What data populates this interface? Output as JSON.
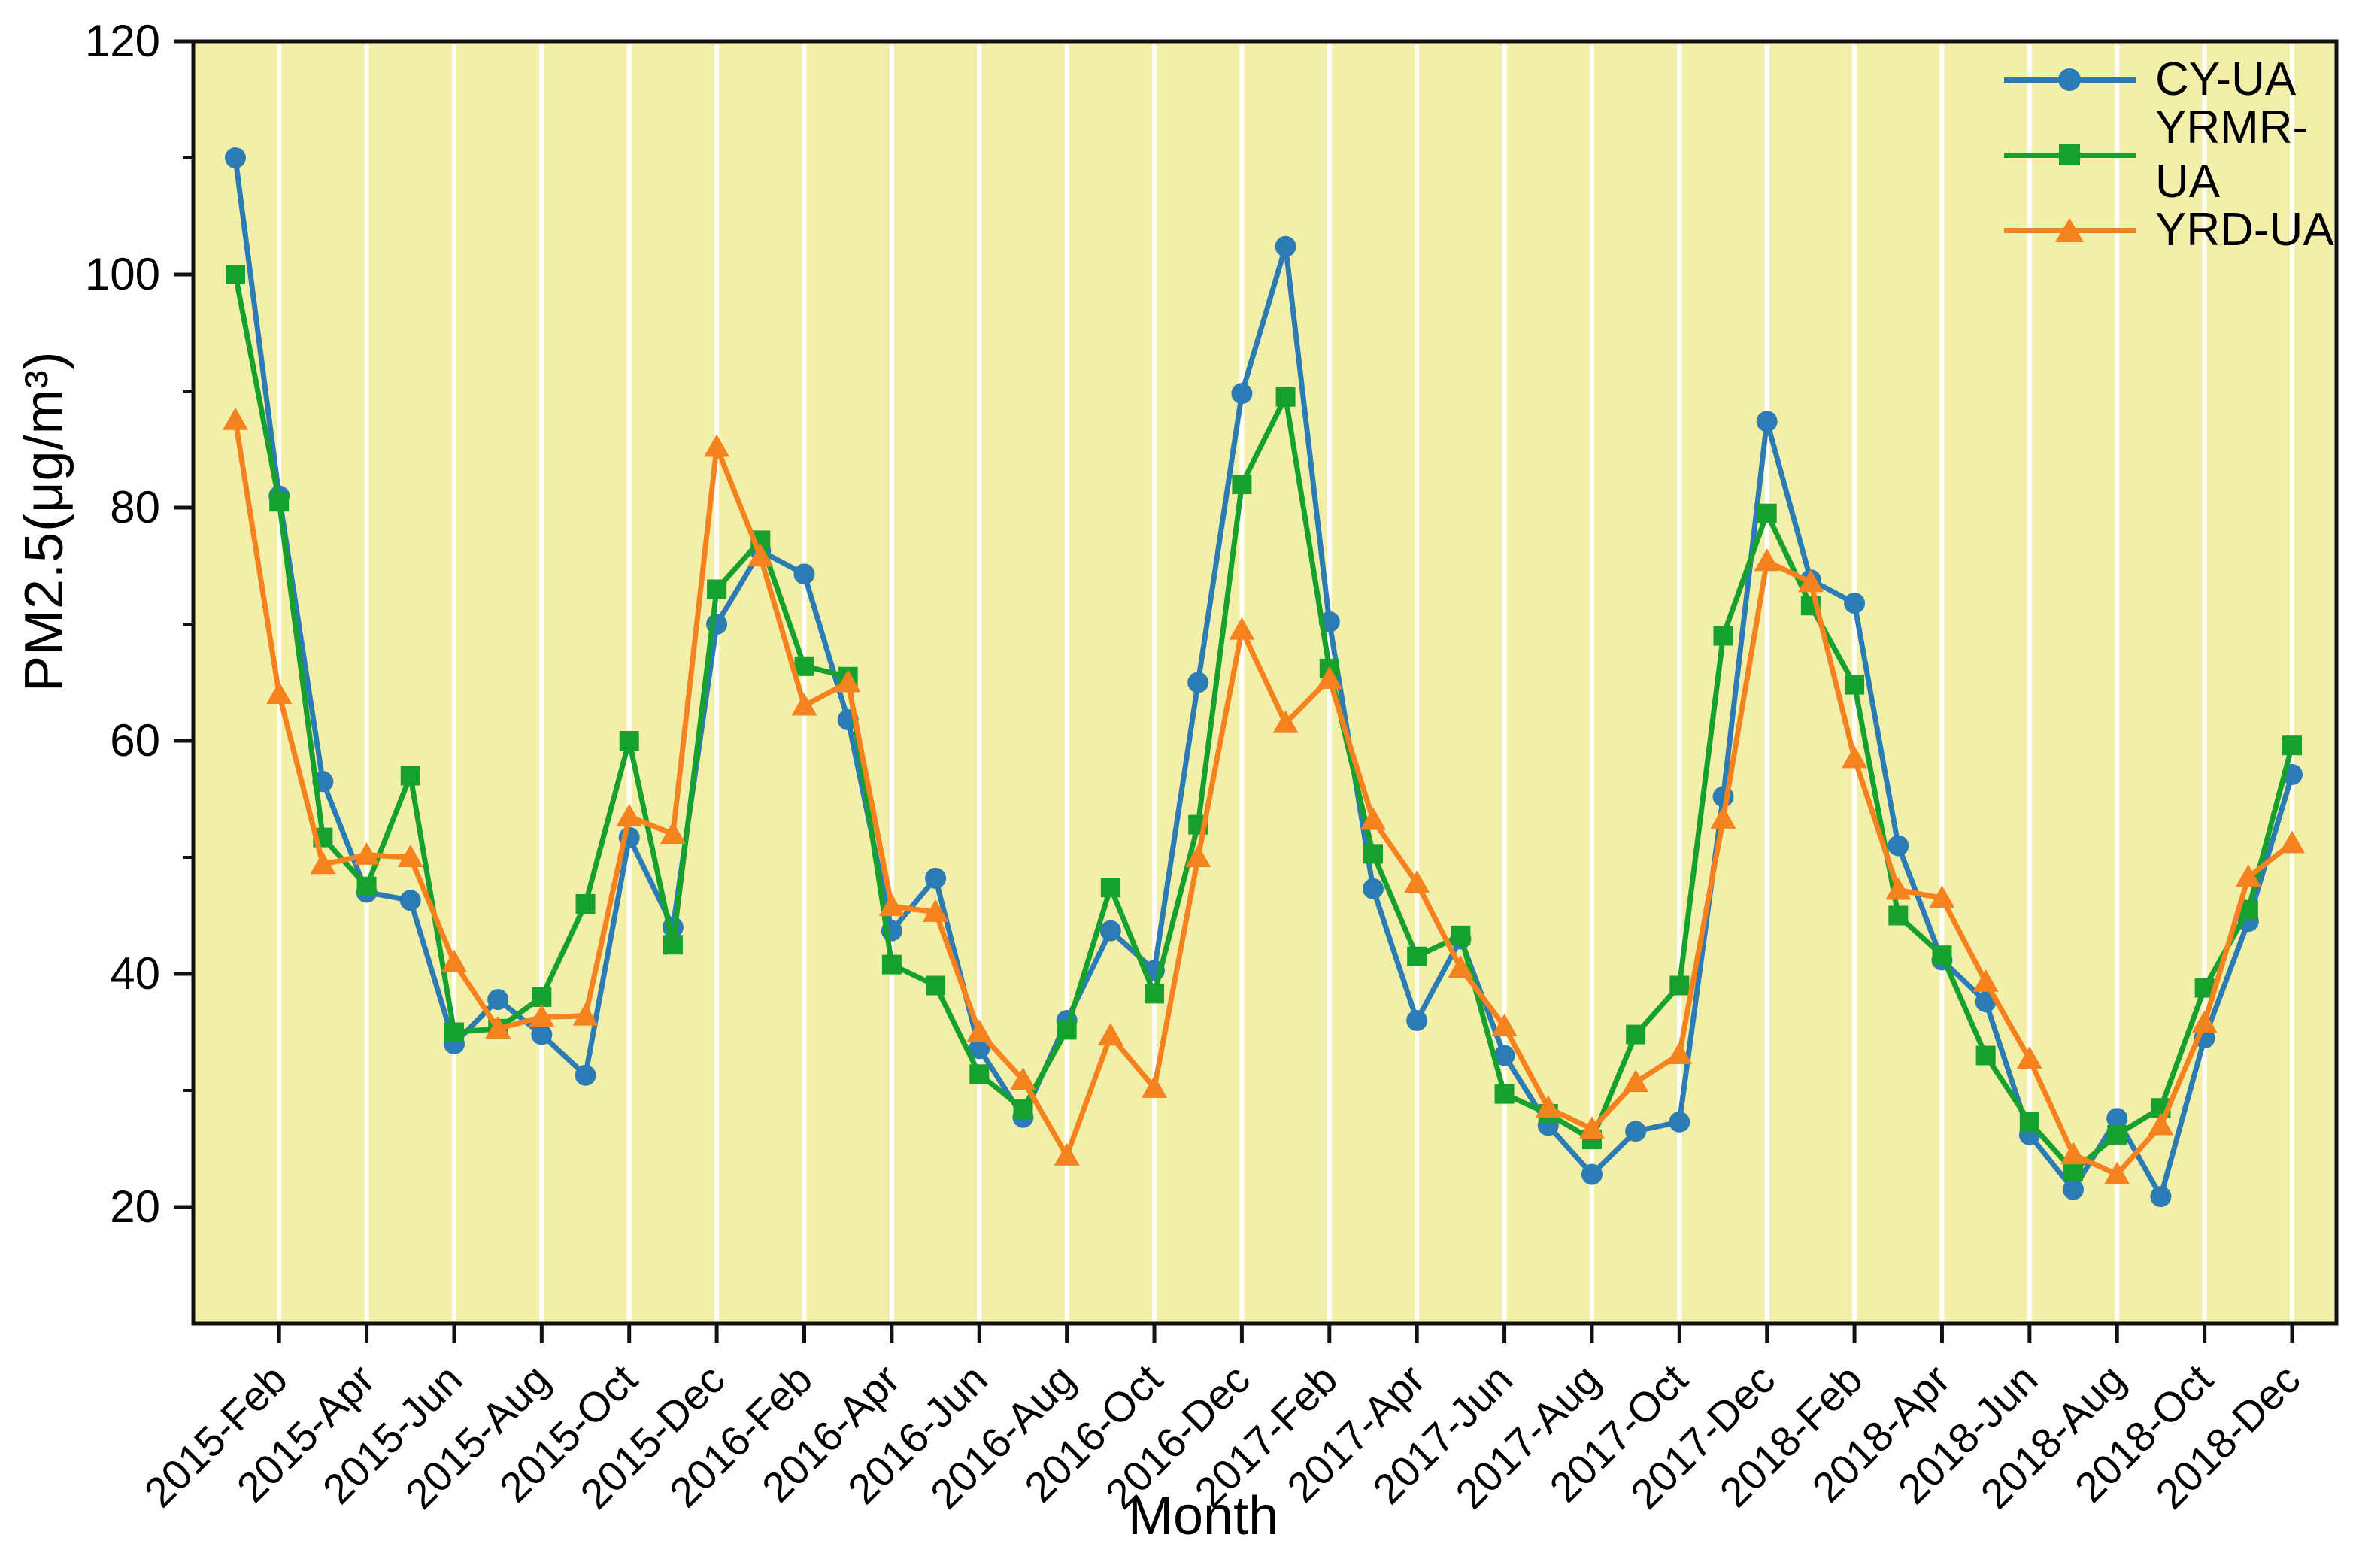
{
  "chart_data": {
    "type": "line",
    "title": "",
    "xlabel": "Month",
    "ylabel": "PM2.5(μg/m³)",
    "ylim": [
      10,
      120
    ],
    "yticks": [
      20,
      40,
      60,
      80,
      100,
      120
    ],
    "yticks_minor": [
      30,
      50,
      70,
      90,
      110
    ],
    "grid": "vertical-white-every-2-months",
    "plot_background": "#f2efab",
    "axis_color": "#111111",
    "legend_position": "top-right-inside",
    "x": [
      "2015-Jan",
      "2015-Feb",
      "2015-Mar",
      "2015-Apr",
      "2015-May",
      "2015-Jun",
      "2015-Jul",
      "2015-Aug",
      "2015-Sep",
      "2015-Oct",
      "2015-Nov",
      "2015-Dec",
      "2016-Jan",
      "2016-Feb",
      "2016-Mar",
      "2016-Apr",
      "2016-May",
      "2016-Jun",
      "2016-Jul",
      "2016-Aug",
      "2016-Sep",
      "2016-Oct",
      "2016-Nov",
      "2016-Dec",
      "2017-Jan",
      "2017-Feb",
      "2017-Mar",
      "2017-Apr",
      "2017-May",
      "2017-Jun",
      "2017-Jul",
      "2017-Aug",
      "2017-Sep",
      "2017-Oct",
      "2017-Nov",
      "2017-Dec",
      "2018-Jan",
      "2018-Feb",
      "2018-Mar",
      "2018-Apr",
      "2018-May",
      "2018-Jun",
      "2018-Jul",
      "2018-Aug",
      "2018-Sep",
      "2018-Oct",
      "2018-Nov",
      "2018-Dec"
    ],
    "xtick_labels": [
      "2015-Feb",
      "2015-Apr",
      "2015-Jun",
      "2015-Aug",
      "2015-Oct",
      "2015-Dec",
      "2016-Feb",
      "2016-Apr",
      "2016-Jun",
      "2016-Aug",
      "2016-Oct",
      "2016-Dec",
      "2017-Feb",
      "2017-Apr",
      "2017-Jun",
      "2017-Aug",
      "2017-Oct",
      "2017-Dec",
      "2018-Feb",
      "2018-Apr",
      "2018-Jun",
      "2018-Aug",
      "2018-Oct",
      "2018-Dec"
    ],
    "series": [
      {
        "name": "CY-UA",
        "color": "#2b7cb5",
        "marker": "circle",
        "values": [
          110,
          81,
          56.5,
          47,
          46.3,
          34,
          37.8,
          34.8,
          31.3,
          51.7,
          44,
          70,
          76.3,
          74.3,
          61.8,
          43.7,
          48.2,
          33.6,
          27.7,
          36,
          43.7,
          40.3,
          65,
          89.8,
          102.4,
          70.2,
          47.3,
          36,
          43,
          33,
          27,
          22.8,
          26.5,
          27.3,
          55.2,
          87.4,
          73.8,
          71.8,
          51,
          41.2,
          37.6,
          26.2,
          21.5,
          27.6,
          20.9,
          34.5,
          44.5,
          57.1
        ]
      },
      {
        "name": "YRMR-UA",
        "color": "#16a12f",
        "marker": "square",
        "values": [
          100,
          80.5,
          51.7,
          47.5,
          57,
          35,
          35.3,
          38,
          46,
          60,
          42.5,
          73,
          77.2,
          66.4,
          65.5,
          40.8,
          39,
          31.4,
          28.4,
          35.2,
          47.4,
          38.3,
          52.8,
          82,
          89.5,
          66.2,
          50.3,
          41.5,
          43.3,
          29.7,
          28,
          25.8,
          34.8,
          39,
          69,
          79.5,
          71.6,
          64.8,
          45,
          41.6,
          33,
          27.3,
          23.1,
          26.2,
          28.5,
          38.8,
          45.5,
          59.6
        ]
      },
      {
        "name": "YRD-UA",
        "color": "#f5821e",
        "marker": "triangle",
        "values": [
          87.5,
          64,
          49.4,
          50.2,
          50,
          41,
          35.3,
          36.3,
          36.4,
          53.5,
          52,
          85.2,
          75.8,
          63,
          65,
          45.8,
          45.3,
          35,
          30.9,
          24.4,
          34.7,
          30.2,
          50,
          69.5,
          61.5,
          65.3,
          53.2,
          47.8,
          40.5,
          35.5,
          28.5,
          26.7,
          30.7,
          33.1,
          53.3,
          75.4,
          73.6,
          58.5,
          47.2,
          46.5,
          39.3,
          32.7,
          24.5,
          22.8,
          27,
          35.8,
          48.3,
          51.2
        ]
      }
    ]
  }
}
